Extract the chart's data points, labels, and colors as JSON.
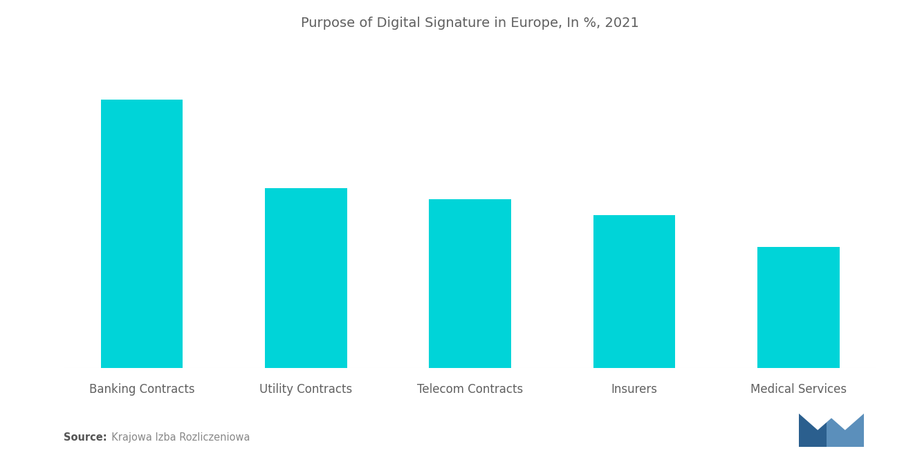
{
  "title": "Purpose of Digital Signature in Europe, In %, 2021",
  "categories": [
    "Banking Contracts",
    "Utility Contracts",
    "Telecom Contracts",
    "Insurers",
    "Medical Services"
  ],
  "values": [
    100,
    67,
    63,
    57,
    45
  ],
  "bar_color": "#00D4D8",
  "background_color": "#ffffff",
  "title_color": "#606060",
  "label_color": "#606060",
  "title_fontsize": 14,
  "label_fontsize": 12,
  "source_bold": "Source:",
  "source_normal": "  Krajowa Izba Rozliczeniowa",
  "ylim": [
    0,
    120
  ]
}
